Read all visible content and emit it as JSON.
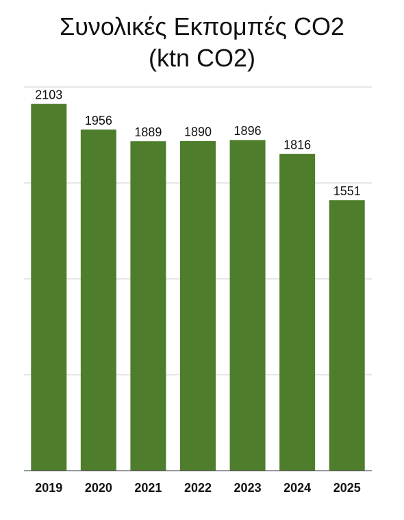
{
  "chart_data": {
    "type": "bar",
    "title": "Συνολικές Εκπομπές CO2 (ktn CO2)",
    "categories": [
      "2019",
      "2020",
      "2021",
      "2022",
      "2023",
      "2024",
      "2025"
    ],
    "values": [
      2103,
      1956,
      1889,
      1890,
      1896,
      1816,
      1551
    ],
    "color": "#4e7d2b",
    "ylim": [
      0,
      2200
    ],
    "yticks": [
      0,
      550,
      1100,
      1650,
      2200
    ],
    "grid": true
  }
}
